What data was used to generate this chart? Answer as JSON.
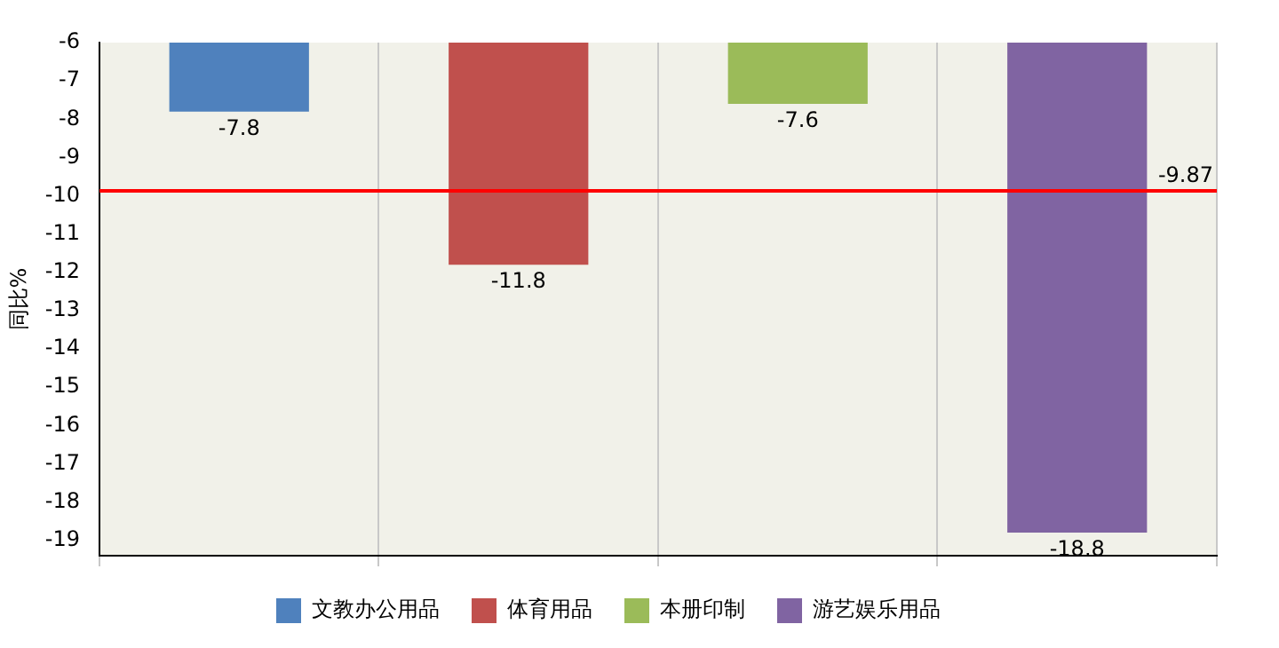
{
  "chart_data": {
    "type": "bar",
    "ylabel": "同比%",
    "categories": [
      null,
      null,
      null,
      null
    ],
    "series": [
      {
        "name": "文教办公用品",
        "color": "#4f81bd",
        "values": [
          -7.8,
          null,
          null,
          null
        ]
      },
      {
        "name": "体育用品",
        "color": "#c0504d",
        "values": [
          null,
          -11.8,
          null,
          null
        ]
      },
      {
        "name": "本册印制",
        "color": "#9bbb59",
        "values": [
          null,
          null,
          -7.6,
          null
        ]
      },
      {
        "name": "游艺娱乐用品",
        "color": "#8064a2",
        "values": [
          null,
          null,
          null,
          -18.8
        ]
      }
    ],
    "ylim": [
      -19.4,
      -6
    ],
    "yticks": [
      -6,
      -7,
      -8,
      -9,
      -10,
      -11,
      -12,
      -13,
      -14,
      -15,
      -16,
      -17,
      -18,
      -19
    ],
    "ref_lines": [
      {
        "axis": "y",
        "value": -9.87,
        "label": "-9.87",
        "color": "#ff0000"
      }
    ],
    "data_labels": true,
    "grid": "x",
    "legend": "bottom",
    "tick_labels": "y"
  }
}
